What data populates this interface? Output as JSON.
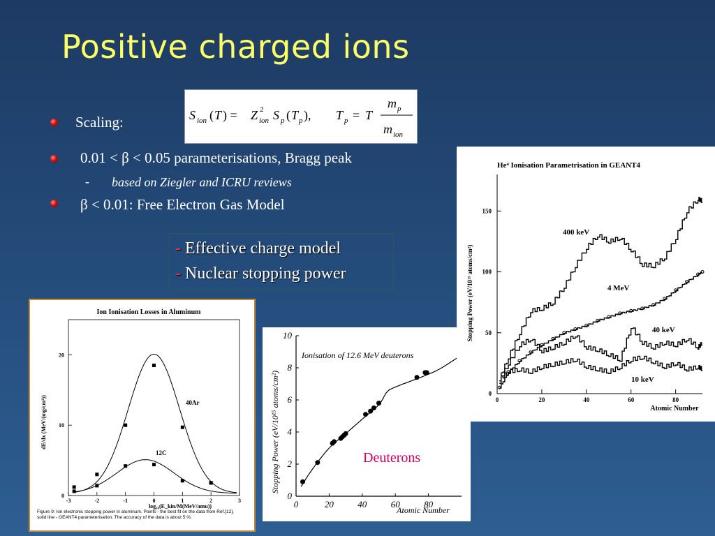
{
  "slide": {
    "title": "Positive charged ions",
    "bullets": [
      {
        "text": "Scaling:"
      },
      {
        "text": "0.01 < β < 0.05 parameterisations, Bragg peak"
      },
      {
        "text": "β < 0.01: Free Electron Gas Model"
      }
    ],
    "sub_bullet": {
      "dash": "-",
      "text": "based on Ziegler and ICRU reviews"
    },
    "box_lines": [
      {
        "dash": "- ",
        "text": "Effective charge model"
      },
      {
        "dash": "- ",
        "text": "Nuclear stopping power"
      }
    ]
  },
  "figures": {
    "aluminum": {
      "title": "Ion Ionisation Losses in Aluminum",
      "ylabel": "dE/dx (MeV/(mg/cm²))",
      "xlabel": "log₁₀(E_kin/M(MeV/amu))",
      "xticks": [
        "-3",
        "-2",
        "-1",
        "0",
        "1",
        "2",
        "3"
      ],
      "yticks": [
        "0",
        "10",
        "20"
      ],
      "label_ar": "40Ar",
      "label_c": "12C",
      "caption": "Figure 9: Ion electronic stopping power in aluminum. Points - the best fit on the data from Ref.[12], solid line - GEANT4 parameterisation. The accuracy of the data is about 5 %."
    },
    "deuterons": {
      "title": "Ionisation of 12.6 MeV deuterons",
      "ylabel": "Stopping Power (eV/10¹⁵ atoms/cm²)",
      "xlabel": "Atomic Number",
      "xticks": [
        "0",
        "20",
        "40",
        "60",
        "80"
      ],
      "yticks": [
        "0",
        "2",
        "4",
        "6",
        "8",
        "10"
      ],
      "tag": "Deuterons",
      "tag_color": "#cc0066"
    },
    "he4": {
      "title": "He⁴ Ionisation Parametrisation in GEANT4",
      "ylabel": "Stopping Power (eV/10¹⁵ atoms/cm²)",
      "xlabel": "Atomic Number",
      "xticks": [
        "0",
        "20",
        "40",
        "60",
        "80"
      ],
      "yticks": [
        "0",
        "50",
        "100",
        "150"
      ],
      "labels": [
        "400 keV",
        "4 MeV",
        "40 keV",
        "10 keV"
      ]
    }
  },
  "chart_data": [
    {
      "type": "line",
      "title": "Ion Ionisation Losses in Aluminum",
      "xlabel": "log10(E_kin/M(MeV/amu))",
      "ylabel": "dE/dx (MeV/(mg/cm2))",
      "xlim": [
        -3,
        3
      ],
      "ylim": [
        0,
        25
      ],
      "series": [
        {
          "name": "40Ar",
          "x": [
            -2.8,
            -2,
            -1,
            0,
            1,
            2
          ],
          "y": [
            1.2,
            3,
            10,
            18.5,
            9.7,
            1.8
          ]
        },
        {
          "name": "12C",
          "x": [
            -2.8,
            -2,
            -1,
            0,
            1,
            2
          ],
          "y": [
            0.6,
            1.4,
            4.2,
            4.4,
            2.1,
            1.8
          ]
        }
      ]
    },
    {
      "type": "scatter",
      "title": "Ionisation of 12.6 MeV deuterons",
      "xlabel": "Atomic Number",
      "ylabel": "Stopping Power (eV/10^15 atoms/cm2)",
      "xlim": [
        0,
        100
      ],
      "ylim": [
        0,
        10
      ],
      "x": [
        4,
        13,
        22,
        23,
        27,
        28,
        29,
        30,
        42,
        45,
        47,
        50,
        73,
        78,
        79
      ],
      "y": [
        0.9,
        2.1,
        3.3,
        3.4,
        3.6,
        3.7,
        3.8,
        3.9,
        5.1,
        5.3,
        5.5,
        5.8,
        7.4,
        7.7,
        7.7
      ]
    },
    {
      "type": "line",
      "title": "He4 Ionisation Parametrisation in GEANT4",
      "xlabel": "Atomic Number",
      "ylabel": "Stopping Power (eV/10^15 atoms/cm2)",
      "xlim": [
        0,
        92
      ],
      "ylim": [
        0,
        180
      ],
      "series": [
        {
          "name": "400 keV",
          "x": [
            1,
            5,
            10,
            15,
            20,
            25,
            30,
            35,
            40,
            45,
            50,
            55,
            60,
            65,
            70,
            75,
            80,
            85,
            90,
            92
          ],
          "y": [
            12,
            30,
            50,
            68,
            70,
            75,
            88,
            105,
            120,
            130,
            125,
            128,
            118,
            106,
            105,
            112,
            128,
            150,
            160,
            158
          ]
        },
        {
          "name": "4 MeV",
          "x": [
            1,
            5,
            10,
            15,
            20,
            25,
            30,
            35,
            40,
            45,
            50,
            55,
            60,
            65,
            70,
            75,
            80,
            85,
            90,
            92
          ],
          "y": [
            5,
            18,
            27,
            34,
            40,
            45,
            50,
            53,
            56,
            60,
            63,
            66,
            68,
            70,
            73,
            78,
            85,
            92,
            98,
            100
          ]
        },
        {
          "name": "40 keV",
          "x": [
            1,
            5,
            10,
            15,
            20,
            25,
            30,
            35,
            40,
            45,
            50,
            55,
            60,
            65,
            70,
            75,
            80,
            85,
            90,
            92
          ],
          "y": [
            10,
            25,
            40,
            45,
            35,
            38,
            42,
            48,
            38,
            36,
            32,
            28,
            55,
            42,
            38,
            42,
            40,
            45,
            38,
            42
          ]
        },
        {
          "name": "10 keV",
          "x": [
            1,
            5,
            10,
            15,
            20,
            25,
            30,
            35,
            40,
            45,
            50,
            55,
            60,
            65,
            70,
            75,
            80,
            85,
            90,
            92
          ],
          "y": [
            12,
            18,
            20,
            18,
            22,
            24,
            26,
            28,
            22,
            20,
            18,
            22,
            28,
            30,
            26,
            22,
            25,
            20,
            22,
            20
          ]
        }
      ]
    }
  ]
}
